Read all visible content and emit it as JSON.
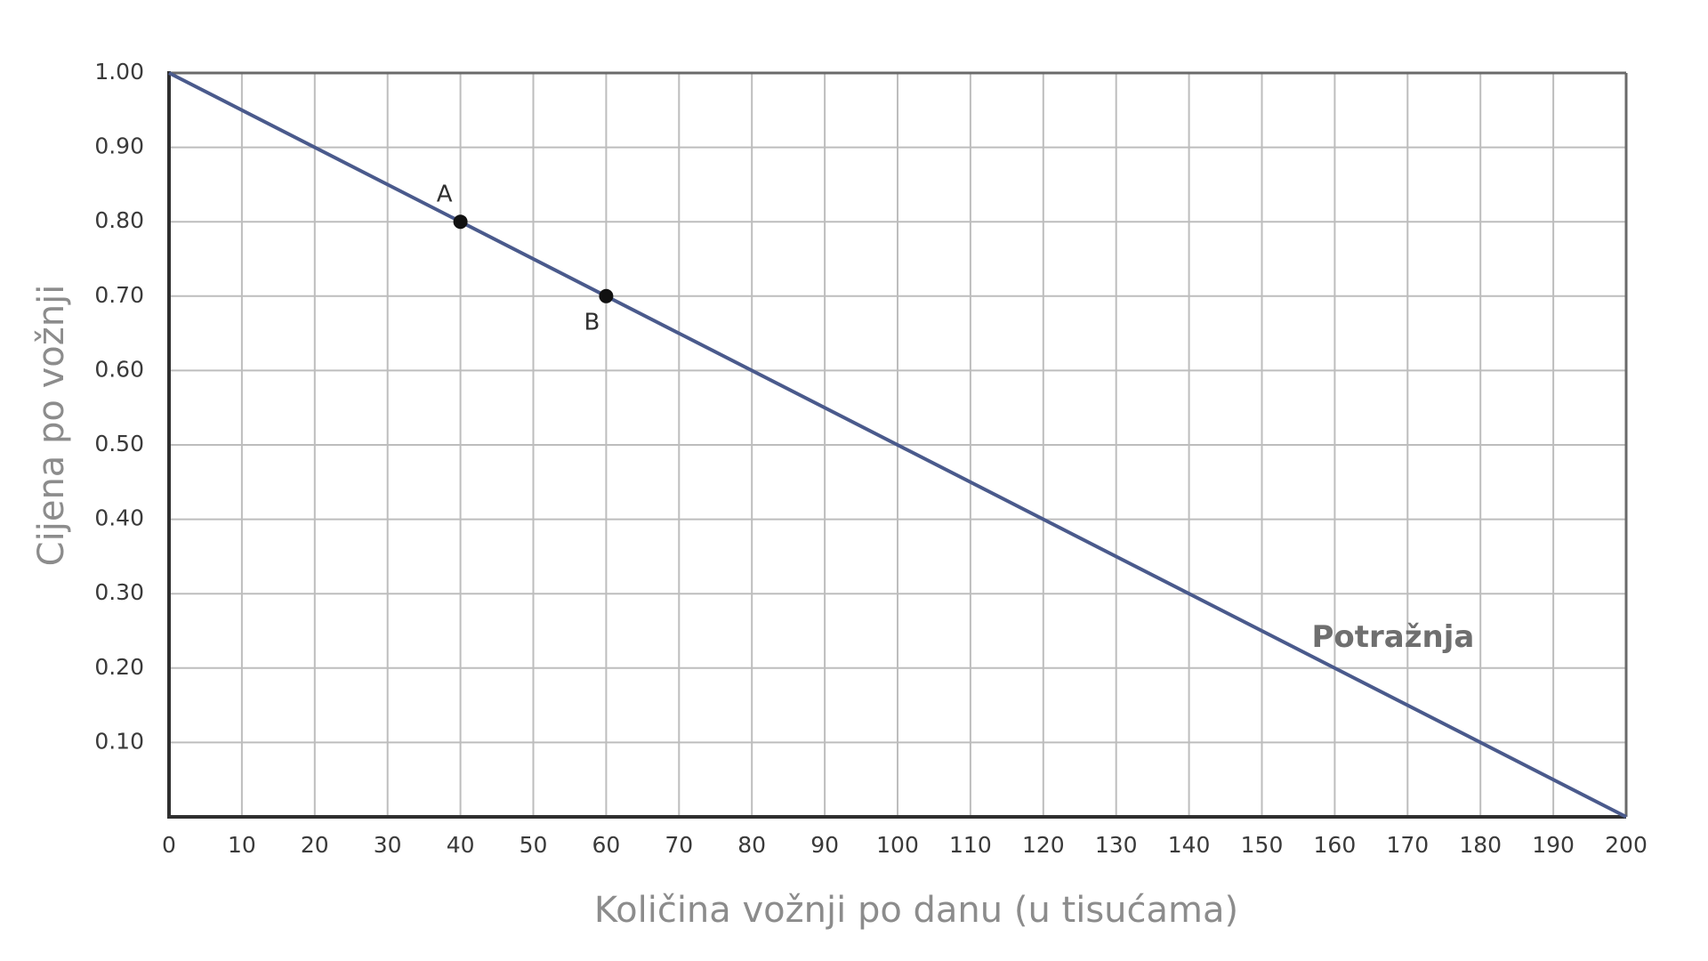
{
  "chart_data": {
    "type": "line",
    "xlabel": "Količina vožnji po danu (u tisućama)",
    "ylabel": "Cijena po vožnji",
    "xlim": [
      0,
      200
    ],
    "ylim": [
      0,
      1.0
    ],
    "x_ticks": [
      0,
      10,
      20,
      30,
      40,
      50,
      60,
      70,
      80,
      90,
      100,
      110,
      120,
      130,
      140,
      150,
      160,
      170,
      180,
      190,
      200
    ],
    "x_tick_labels": [
      "0",
      "10",
      "20",
      "30",
      "40",
      "50",
      "60",
      "70",
      "80",
      "90",
      "100",
      "110",
      "120",
      "130",
      "140",
      "150",
      "160",
      "170",
      "180",
      "190",
      "200"
    ],
    "y_ticks": [
      0.1,
      0.2,
      0.3,
      0.4,
      0.5,
      0.6,
      0.7,
      0.8,
      0.9,
      1.0
    ],
    "y_tick_labels": [
      "0.10",
      "0.20",
      "0.30",
      "0.40",
      "0.50",
      "0.60",
      "0.70",
      "0.80",
      "0.90",
      "1.00"
    ],
    "grid": true,
    "series": [
      {
        "name": "Potražnja",
        "x": [
          0,
          200
        ],
        "y": [
          1.0,
          0.0
        ],
        "color": "#4a5a8c"
      }
    ],
    "points": [
      {
        "label": "A",
        "x": 40,
        "y": 0.8
      },
      {
        "label": "B",
        "x": 60,
        "y": 0.7
      }
    ],
    "colors": {
      "grid": "#bdbdbd",
      "frame": "#2f2f2f",
      "series": "#4a5a8c",
      "point": "#111111"
    }
  }
}
